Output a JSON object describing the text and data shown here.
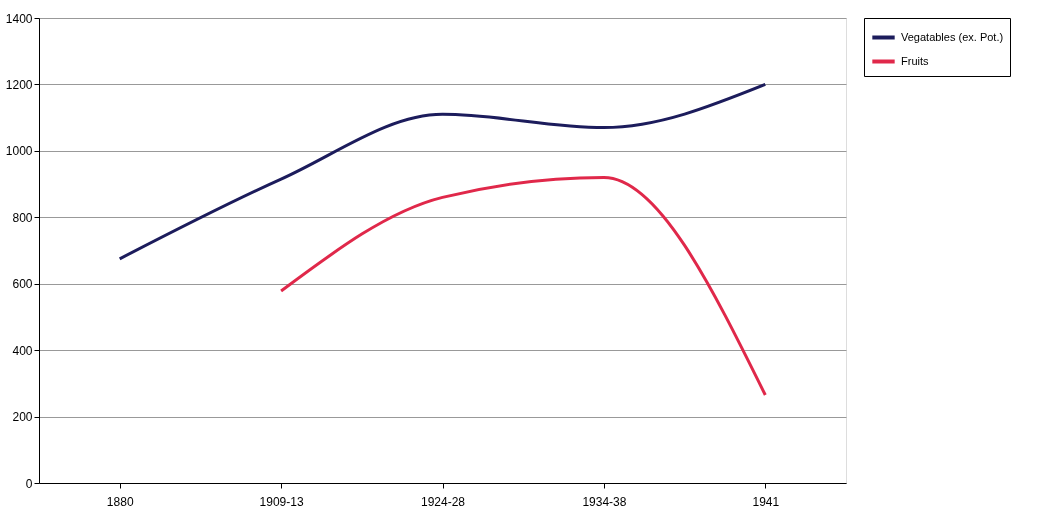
{
  "chart_data": {
    "type": "line",
    "categories": [
      "1880",
      "1909-13",
      "1924-28",
      "1934-38",
      "1941"
    ],
    "series": [
      {
        "name": "Vegatables (ex. Pot.)",
        "color": "#1c1c5c",
        "values": [
          675,
          915,
          1110,
          1070,
          1200
        ]
      },
      {
        "name": "Fruits",
        "color": "#e0284a",
        "values": [
          null,
          578,
          860,
          920,
          265
        ]
      }
    ],
    "ylim": [
      0,
      1400
    ],
    "yticks": [
      0,
      200,
      400,
      600,
      800,
      1000,
      1200,
      1400
    ],
    "grid": "y",
    "legend": "right",
    "marker": "none",
    "line_style": "solid"
  }
}
